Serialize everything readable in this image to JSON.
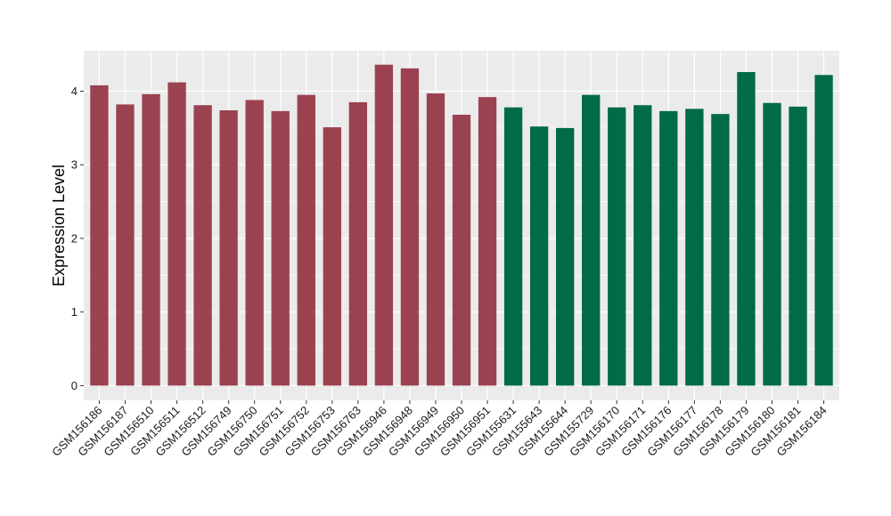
{
  "chart_data": {
    "type": "bar",
    "ylabel": "Expression Level",
    "xlabel": "",
    "ylim": [
      -0.2,
      4.55
    ],
    "yticks": [
      0,
      1,
      2,
      3,
      4
    ],
    "yticklabels": [
      "0",
      "1",
      "2",
      "3",
      "4"
    ],
    "grid": true,
    "legend": "none",
    "colors": {
      "group1": "#9b4250",
      "group2": "#006b45",
      "panel": "#ebebeb",
      "gridline": "#ffffff"
    },
    "categories": [
      "GSM156186",
      "GSM156187",
      "GSM156510",
      "GSM156511",
      "GSM156512",
      "GSM156749",
      "GSM156750",
      "GSM156751",
      "GSM156752",
      "GSM156753",
      "GSM156763",
      "GSM156946",
      "GSM156948",
      "GSM156949",
      "GSM156950",
      "GSM156951",
      "GSM155631",
      "GSM155643",
      "GSM155644",
      "GSM155729",
      "GSM156170",
      "GSM156171",
      "GSM156176",
      "GSM156177",
      "GSM156178",
      "GSM156179",
      "GSM156180",
      "GSM156181",
      "GSM156184"
    ],
    "values": [
      4.08,
      3.82,
      3.96,
      4.12,
      3.81,
      3.74,
      3.88,
      3.73,
      3.95,
      3.51,
      3.85,
      4.36,
      4.31,
      3.97,
      3.68,
      3.92,
      3.78,
      3.52,
      3.5,
      3.95,
      3.78,
      3.81,
      3.73,
      3.76,
      3.69,
      4.26,
      3.84,
      3.79,
      4.22
    ],
    "groups": [
      1,
      1,
      1,
      1,
      1,
      1,
      1,
      1,
      1,
      1,
      1,
      1,
      1,
      1,
      1,
      1,
      2,
      2,
      2,
      2,
      2,
      2,
      2,
      2,
      2,
      2,
      2,
      2,
      2
    ]
  }
}
